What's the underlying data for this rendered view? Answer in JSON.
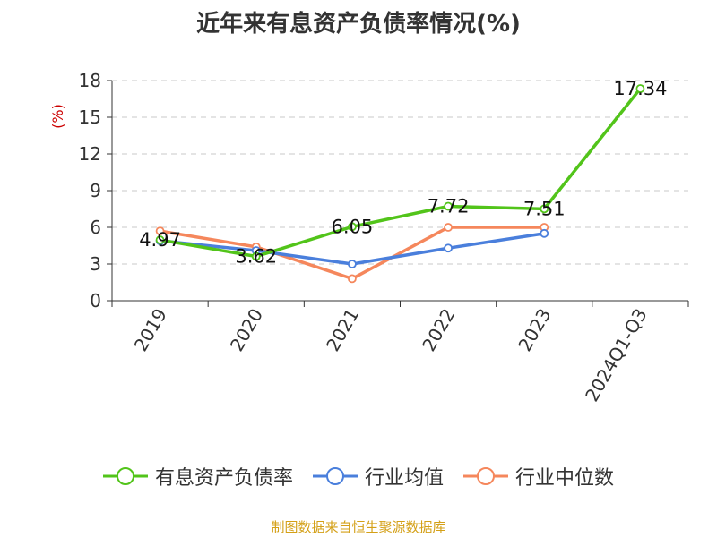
{
  "chart_data": {
    "type": "line",
    "title": "近年来有息资产负债率情况(%)",
    "ylabel": "(%)",
    "xlabel": "",
    "categories": [
      "2019",
      "2020",
      "2021",
      "2022",
      "2023",
      "2024Q1-Q3"
    ],
    "ylim": [
      0,
      18
    ],
    "yticks": [
      0,
      3,
      6,
      9,
      12,
      15,
      18
    ],
    "grid": true,
    "legend_position": "bottom",
    "series": [
      {
        "name": "有息资产负债率",
        "color": "#52c41a",
        "values": [
          4.97,
          3.62,
          6.05,
          7.72,
          7.51,
          17.34
        ],
        "labels": [
          "4.97",
          "3.62",
          "6.05",
          "7.72",
          "7.51",
          "17.34"
        ]
      },
      {
        "name": "行业均值",
        "color": "#4a7fdc",
        "values": [
          4.9,
          4.1,
          3.0,
          4.3,
          5.5,
          null
        ]
      },
      {
        "name": "行业中位数",
        "color": "#f5875c",
        "values": [
          5.7,
          4.4,
          1.8,
          6.0,
          6.0,
          null
        ]
      }
    ]
  },
  "source": "制图数据来自恒生聚源数据库"
}
